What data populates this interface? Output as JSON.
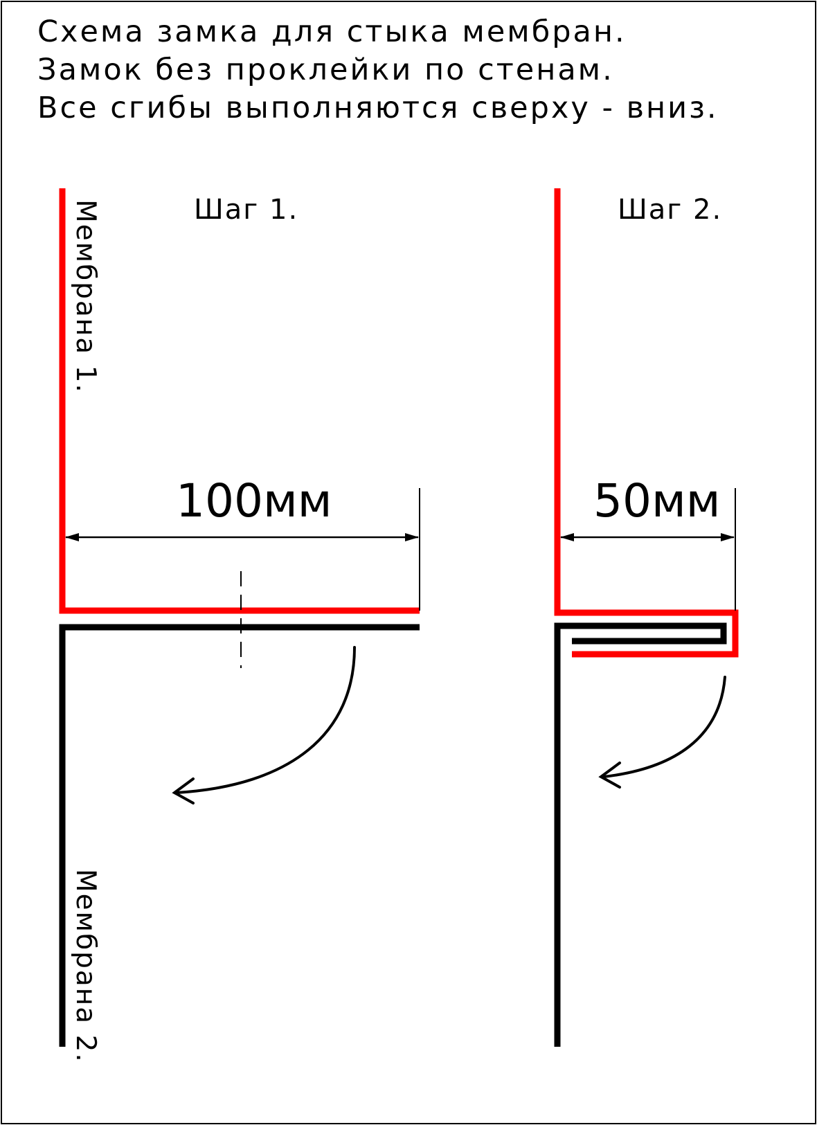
{
  "title": {
    "line1": "Схема замка для стыка мембран.",
    "line2": "Замок без проклейки по стенам.",
    "line3": "Все сгибы выполняются сверху - вниз."
  },
  "step1": {
    "label": "Шаг 1.",
    "dimension": "100мм",
    "membrane_top_label": "Мембрана 1.",
    "membrane_bottom_label": "Мембрана 2."
  },
  "step2": {
    "label": "Шаг 2.",
    "dimension": "50мм"
  },
  "colors": {
    "membrane_1": "#ff0000",
    "membrane_2": "#000000",
    "dimension_lines": "#000000",
    "border": "#000000",
    "background": "#ffffff"
  }
}
